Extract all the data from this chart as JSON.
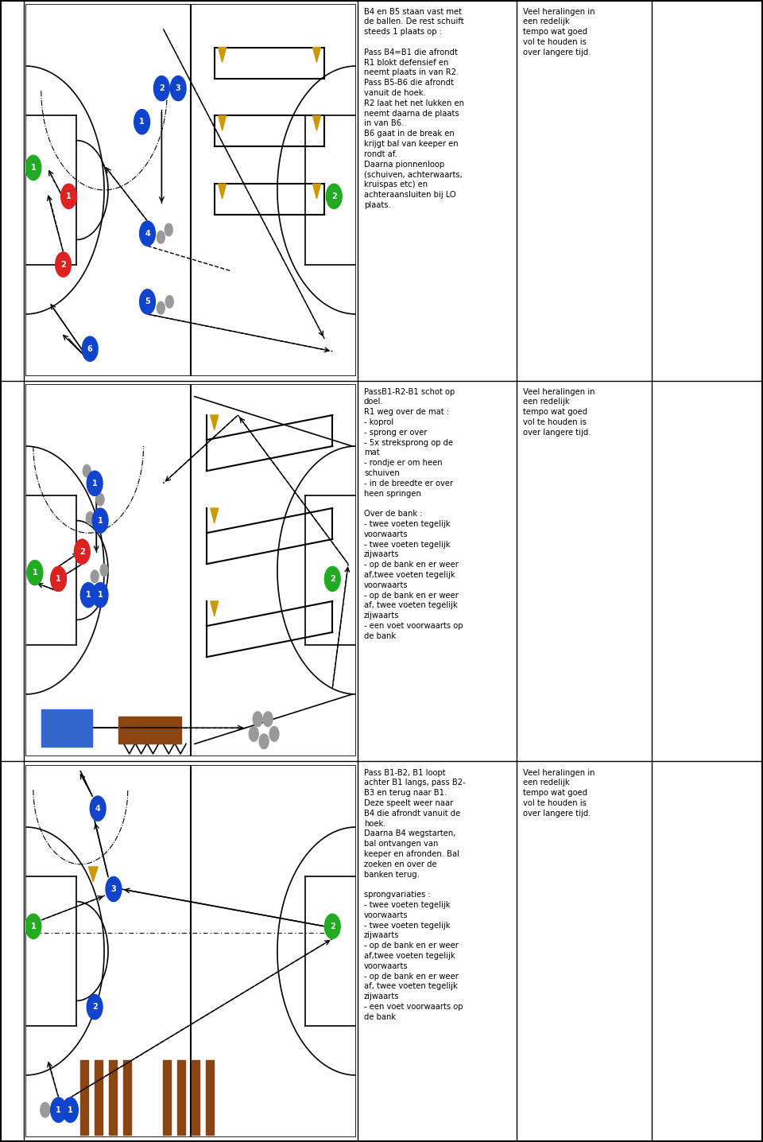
{
  "bg_color": "#ffffff",
  "text_col1_rows": [
    "B4 en B5 staan vast met\nde ballen. De rest schuift\nsteeds 1 plaats op :\n\nPass B4=B1 die afrondt\nR1 blokt defensief en\nneemt plaats in van R2.\nPass B5-B6 die afrondt\nvanuit de hoek.\nR2 laat het net lukken en\nneemt daarna de plaats\nin van B6.\nB6 gaat in de break en\nkrijgt bal van keeper en\nrondt af.\nDaarna pionnenloop\n(schuiven, achterwaarts,\nkruispas etc) en\nachteraansluiten bij LO\nplaats.",
    "PassB1-R2-B1 schot op\ndoel.\nR1 weg over de mat :\n- koprol\n- sprong er over\n- 5x streksprong op de\nmat\n- rondje er om heen\nschuiven\n- in de breedte er over\nheen springen\n\nOver de bank :\n- twee voeten tegelijk\nvoorwaarts\n- twee voeten tegelijk\nzijwaarts\n- op de bank en er weer\naf,twee voeten tegelijk\nvoorwaarts\n- op de bank en er weer\naf, twee voeten tegelijk\nzijwaarts\n- een voet voorwaarts op\nde bank",
    "Pass B1-B2, B1 loopt\nachter B1 langs, pass B2-\nB3 en terug naar B1.\nDeze speelt weer naar\nB4 die afrondt vanuit de\nhoek.\nDaarna B4 wegstarten,\nbal ontvangen van\nkeeper en afronden. Bal\nzoeken en over de\nbanken terug.\n\nsprongvariaties :\n- twee voeten tegelijk\nvoorwaarts\n- twee voeten tegelijk\nzijwaarts\n- op de bank en er weer\naf,twee voeten tegelijk\nvoorwaarts\n- op de bank en er weer\naf, twee voeten tegelijk\nzijwaarts\n- een voet voorwaarts op\nde bank"
  ],
  "text_col2_rows": [
    "Veel heralingen in\neen redelijk\ntempo wat goed\nvol te houden is\nover langere tijd.",
    "Veel heralingen in\neen redelijk\ntempo wat goed\nvol te houden is\nover langere tijd.",
    "Veel heralingen in\neen redelijk\ntempo wat goed\nvol te houden is\nover langere tijd."
  ]
}
